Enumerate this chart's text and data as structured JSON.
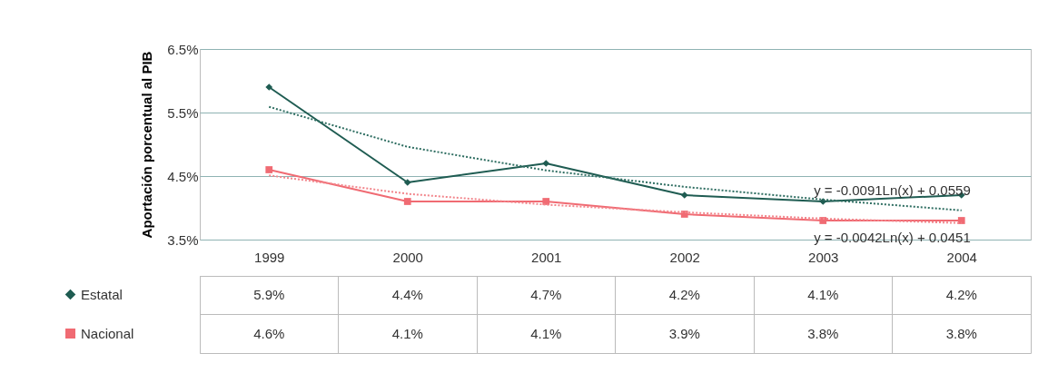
{
  "chart_data": {
    "type": "line",
    "ylabel": "Aportación porcentual al PIB",
    "categories": [
      "1999",
      "2000",
      "2001",
      "2002",
      "2003",
      "2004"
    ],
    "ylim": [
      3.5,
      6.5
    ],
    "yticks": [
      {
        "value": 3.5,
        "label": "3.5%"
      },
      {
        "value": 4.5,
        "label": "4.5%"
      },
      {
        "value": 5.5,
        "label": "5.5%"
      },
      {
        "value": 6.5,
        "label": "6.5%"
      }
    ],
    "grid": "y",
    "legend": "bottom left",
    "line_style": "solid",
    "series": [
      {
        "name": "Estatal",
        "color": "#1f5c52",
        "marker": "diamond",
        "values": [
          5.9,
          4.4,
          4.7,
          4.2,
          4.1,
          4.2
        ],
        "value_labels": [
          "5.9%",
          "4.4%",
          "4.7%",
          "4.2%",
          "4.1%",
          "4.2%"
        ]
      },
      {
        "name": "Nacional",
        "color": "#f06b73",
        "marker": "square",
        "values": [
          4.6,
          4.1,
          4.1,
          3.9,
          3.8,
          3.8
        ],
        "value_labels": [
          "4.6%",
          "4.1%",
          "4.1%",
          "3.9%",
          "3.8%",
          "3.8%"
        ]
      },
      {
        "name": "y = -0.0091Ln(x) + 0.0559",
        "type": "line",
        "line_style": "dotted",
        "marker": "none",
        "color": "#2f6e62",
        "values": [
          5.59,
          4.96,
          4.59,
          4.33,
          4.13,
          3.96
        ]
      },
      {
        "name": "y = -0.0042Ln(x) + 0.0451",
        "type": "line",
        "line_style": "dotted",
        "marker": "none",
        "color": "#f2858b",
        "values": [
          4.51,
          4.22,
          4.05,
          3.93,
          3.83,
          3.76
        ]
      }
    ]
  }
}
